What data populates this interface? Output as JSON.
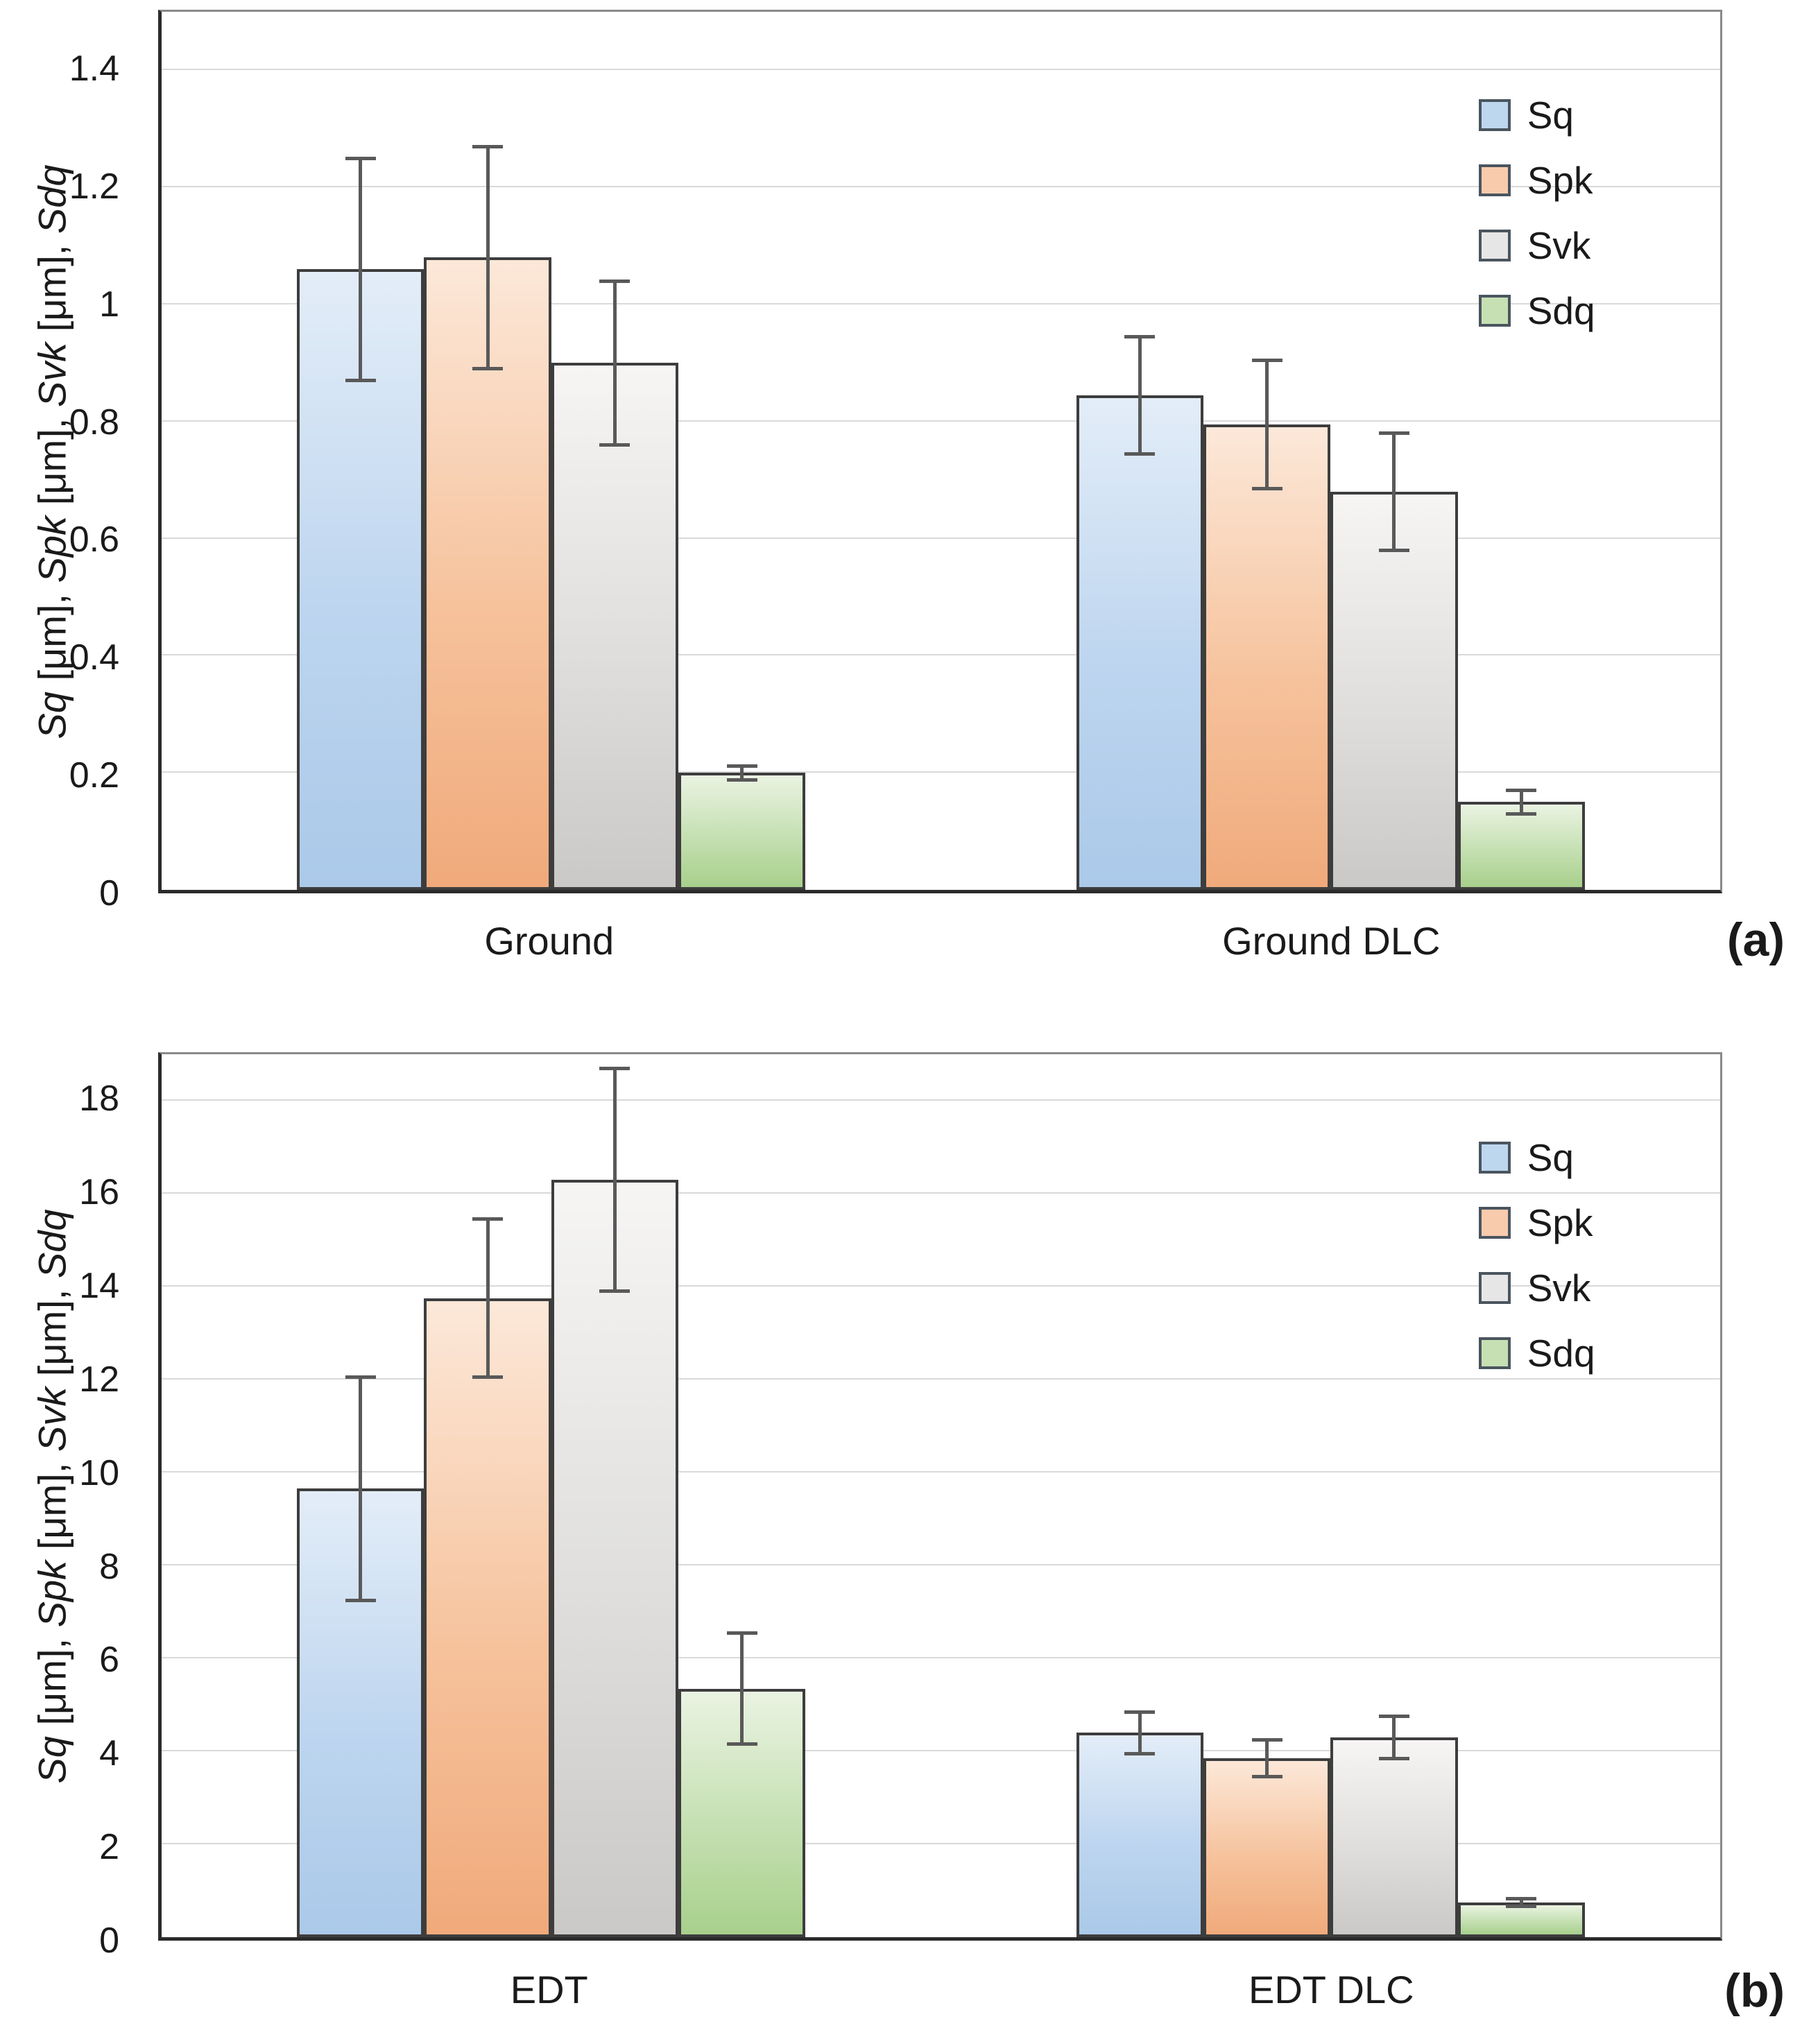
{
  "chart_data": [
    {
      "type": "bar",
      "panel_label": "(a)",
      "title": "",
      "xlabel": "",
      "ylabel": "Sq [μm], Spk [μm], Svk [μm], Sdq",
      "ylabel_segments": [
        {
          "text": "Sq",
          "italic": true
        },
        {
          "text": " [μm], ",
          "italic": false
        },
        {
          "text": "Spk",
          "italic": true
        },
        {
          "text": " [μm], ",
          "italic": false
        },
        {
          "text": "Svk",
          "italic": true
        },
        {
          "text": " [μm], ",
          "italic": false
        },
        {
          "text": "Sdq",
          "italic": true
        }
      ],
      "categories": [
        "Ground",
        "Ground DLC"
      ],
      "series": [
        {
          "name": "Sq",
          "values": [
            1.06,
            0.845
          ],
          "errors": [
            0.19,
            0.1
          ]
        },
        {
          "name": "Spk",
          "values": [
            1.08,
            0.795
          ],
          "errors": [
            0.19,
            0.11
          ]
        },
        {
          "name": "Svk",
          "values": [
            0.9,
            0.68
          ],
          "errors": [
            0.14,
            0.1
          ]
        },
        {
          "name": "Sdq",
          "values": [
            0.2,
            0.15
          ],
          "errors": [
            0.012,
            0.02
          ]
        }
      ],
      "ylim": [
        0,
        1.5
      ],
      "yticks": [
        0,
        0.2,
        0.4,
        0.6,
        0.8,
        1,
        1.2,
        1.4
      ],
      "ytick_labels": [
        "0",
        "0.2",
        "0.4",
        "0.6",
        "0.8",
        "1",
        "1.2",
        "1.4"
      ],
      "grid": true,
      "legend": [
        "Sq",
        "Spk",
        "Svk",
        "Sdq"
      ],
      "legend_position": "top-right"
    },
    {
      "type": "bar",
      "panel_label": "(b)",
      "title": "",
      "xlabel": "",
      "ylabel": "Sq [μm], Spk [μm], Svk [μm], Sdq",
      "ylabel_segments": [
        {
          "text": "Sq",
          "italic": true
        },
        {
          "text": " [μm], ",
          "italic": false
        },
        {
          "text": "Spk",
          "italic": true
        },
        {
          "text": " [μm], ",
          "italic": false
        },
        {
          "text": "Svk",
          "italic": true
        },
        {
          "text": " [μm], ",
          "italic": false
        },
        {
          "text": "Sdq",
          "italic": true
        }
      ],
      "categories": [
        "EDT",
        "EDT DLC"
      ],
      "series": [
        {
          "name": "Sq",
          "values": [
            9.65,
            4.4
          ],
          "errors": [
            2.4,
            0.45
          ]
        },
        {
          "name": "Spk",
          "values": [
            13.75,
            3.85
          ],
          "errors": [
            1.7,
            0.4
          ]
        },
        {
          "name": "Svk",
          "values": [
            16.3,
            4.3
          ],
          "errors": [
            2.4,
            0.45
          ]
        },
        {
          "name": "Sdq",
          "values": [
            5.35,
            0.75
          ],
          "errors": [
            1.2,
            0.08
          ]
        }
      ],
      "ylim": [
        0,
        19
      ],
      "yticks": [
        0,
        2,
        4,
        6,
        8,
        10,
        12,
        14,
        16,
        18
      ],
      "ytick_labels": [
        "0",
        "2",
        "4",
        "6",
        "8",
        "10",
        "12",
        "14",
        "16",
        "18"
      ],
      "grid": true,
      "legend": [
        "Sq",
        "Spk",
        "Svk",
        "Sdq"
      ],
      "legend_position": "top-right"
    }
  ],
  "colors": {
    "series_fill": {
      "Sq": "#bdd7ee",
      "Spk": "#f8cbad",
      "Svk": "#e7e6e6",
      "Sdq": "#c6e0b4"
    },
    "bar_border": "#3d3d3d",
    "error_bar": "#595959",
    "gridline": "#d9d9d9",
    "axis": "#2b2b2b",
    "text": "#1a1a1a",
    "background": "#ffffff"
  }
}
